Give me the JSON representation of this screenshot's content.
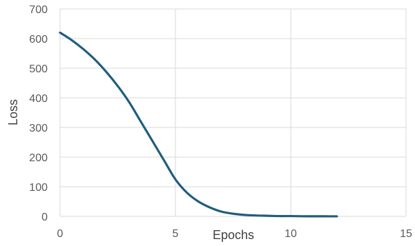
{
  "chart_data": {
    "type": "line",
    "title": "",
    "xlabel": "Epochs",
    "ylabel": "Loss",
    "xlim": [
      0,
      15
    ],
    "ylim": [
      0,
      700
    ],
    "xticks": [
      0,
      5,
      10,
      15
    ],
    "yticks": [
      0,
      100,
      200,
      300,
      400,
      500,
      600,
      700
    ],
    "grid": true,
    "legend": "none",
    "series": [
      {
        "color": "#1f5d7e",
        "x": [
          0,
          0.5,
          1,
          1.5,
          2,
          2.5,
          3,
          3.5,
          4,
          4.5,
          5,
          5.5,
          6,
          6.5,
          7,
          7.5,
          8,
          8.5,
          9,
          9.5,
          10,
          10.5,
          11,
          11.5,
          12
        ],
        "y": [
          620,
          595,
          565,
          530,
          488,
          440,
          385,
          320,
          255,
          190,
          125,
          80,
          50,
          30,
          16,
          9,
          5,
          3,
          2,
          1,
          1,
          0.5,
          0.3,
          0.2,
          0.1
        ]
      }
    ]
  },
  "colors": {
    "grid": "#d9d9d9",
    "axis_text": "#595959",
    "label_text": "#404040"
  }
}
